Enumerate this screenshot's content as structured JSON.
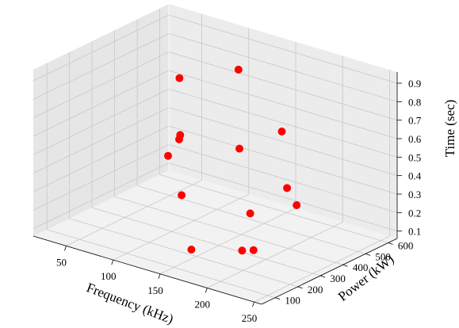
{
  "chart_data": {
    "type": "scatter",
    "projection": "3d",
    "xlabel": "Frequency (kHz)",
    "ylabel": "Power (kW)",
    "zlabel": "Time (sec)",
    "x_ticks": [
      50,
      100,
      150,
      200,
      250
    ],
    "y_ticks": [
      100,
      200,
      300,
      400,
      500,
      600
    ],
    "z_ticks": [
      0.1,
      0.2,
      0.3,
      0.4,
      0.5,
      0.6,
      0.7,
      0.8,
      0.9
    ],
    "xlim": [
      15,
      258
    ],
    "ylim": [
      40,
      640
    ],
    "zlim": [
      0.06,
      0.96
    ],
    "grid": true,
    "marker_color": "#ff0000",
    "points": [
      {
        "x": 130,
        "y": 470,
        "z": 0.88
      },
      {
        "x": 60,
        "y": 500,
        "z": 0.71
      },
      {
        "x": 205,
        "y": 350,
        "z": 0.73
      },
      {
        "x": 155,
        "y": 370,
        "z": 0.55
      },
      {
        "x": 80,
        "y": 420,
        "z": 0.48
      },
      {
        "x": 50,
        "y": 540,
        "z": 0.34
      },
      {
        "x": 55,
        "y": 470,
        "z": 0.3
      },
      {
        "x": 225,
        "y": 290,
        "z": 0.49
      },
      {
        "x": 252,
        "y": 220,
        "z": 0.48
      },
      {
        "x": 120,
        "y": 260,
        "z": 0.31
      },
      {
        "x": 205,
        "y": 210,
        "z": 0.37
      },
      {
        "x": 230,
        "y": 70,
        "z": 0.29
      },
      {
        "x": 247,
        "y": 50,
        "z": 0.33
      },
      {
        "x": 140,
        "y": 220,
        "z": 0.07
      }
    ]
  }
}
